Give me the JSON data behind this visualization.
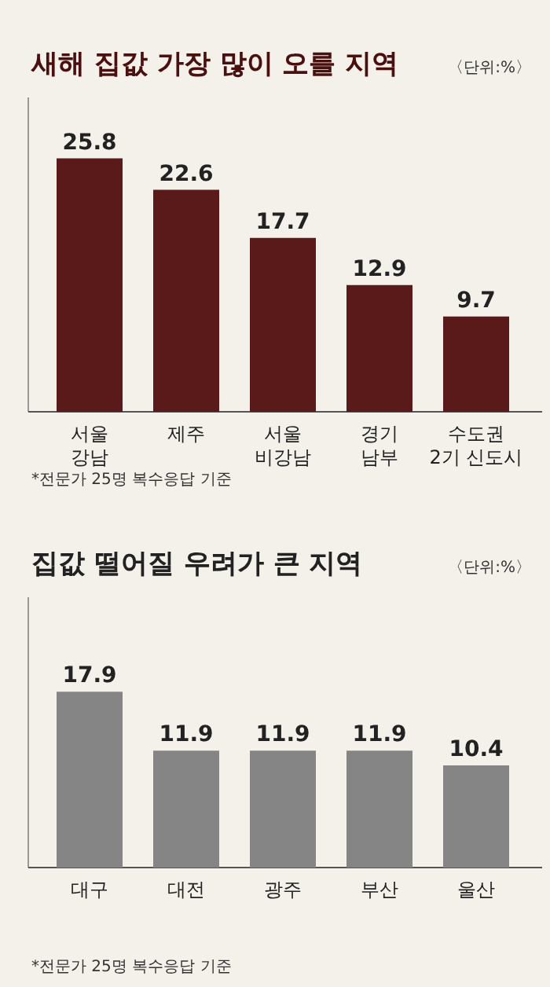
{
  "chart_data": [
    {
      "type": "bar",
      "title": "새해 집값 가장 많이 오를 지역",
      "annotations": [
        "〈단위:%〉",
        "*전문가 25명 복수응답 기준"
      ],
      "categories": [
        "서울\n강남",
        "제주",
        "서울\n비강남",
        "경기\n남부",
        "수도권\n2기 신도시"
      ],
      "values": [
        25.8,
        22.6,
        17.7,
        12.9,
        9.7
      ],
      "color": "#5b1a1a",
      "data_labels": true
    },
    {
      "type": "bar",
      "title": "집값 떨어질 우려가 큰 지역",
      "annotations": [
        "〈단위:%〉",
        "*전문가 25명 복수응답 기준"
      ],
      "categories": [
        "대구",
        "대전",
        "광주",
        "부산",
        "울산"
      ],
      "values": [
        17.9,
        11.9,
        11.9,
        11.9,
        10.4
      ],
      "color": "#858585",
      "data_labels": true
    }
  ]
}
